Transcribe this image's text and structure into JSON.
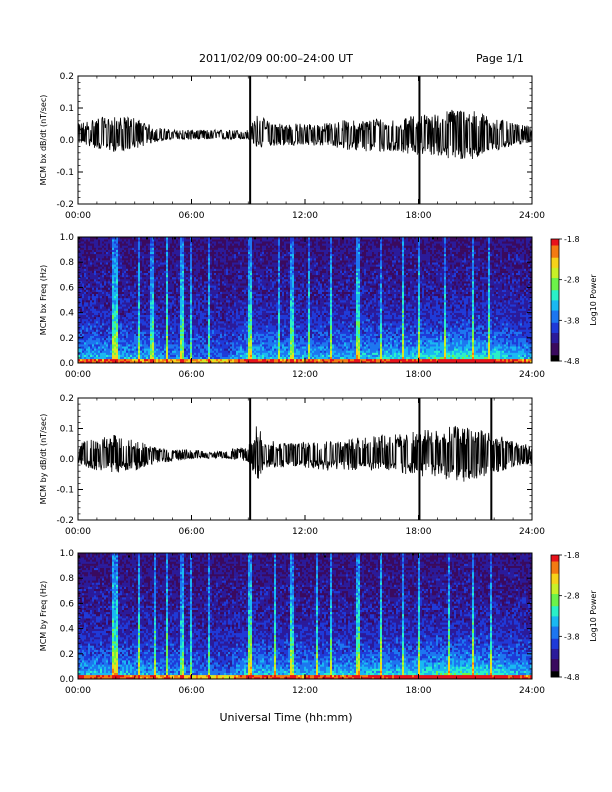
{
  "header": {
    "date_range": "2011/02/09   00:00–24:00 UT",
    "page": "Page 1/1"
  },
  "footer": {
    "xlabel": "Universal Time (hh:mm)"
  },
  "colors": {
    "background": "#ffffff",
    "line": "#000000",
    "colormap": [
      "#000000",
      "#3a0a5e",
      "#2b1b9a",
      "#1f3ad8",
      "#1d76f0",
      "#19b8f2",
      "#2af0c8",
      "#6cf24a",
      "#c8f028",
      "#f6d21a",
      "#f47a12",
      "#e8121a"
    ]
  },
  "chart_data": [
    {
      "type": "line",
      "id": "bx-dbdt",
      "ylabel": "MCM bx dB/dt (nT/sec)",
      "xlim": [
        0,
        24
      ],
      "ylim": [
        -0.2,
        0.2
      ],
      "xticks": [
        0,
        6,
        12,
        18,
        24
      ],
      "xticklabels": [
        "00:00",
        "06:00",
        "12:00",
        "18:00",
        "24:00"
      ],
      "yticks": [
        -0.2,
        -0.1,
        0.0,
        0.1,
        0.2
      ],
      "yticklabels": [
        "-0.2",
        "-0.1",
        "0.0",
        "0.1",
        "0.2"
      ],
      "envelope": {
        "x": [
          0,
          1,
          2,
          3,
          4,
          5,
          6,
          7,
          8,
          9,
          9.5,
          10,
          11,
          12,
          13,
          14,
          15,
          16,
          17,
          18,
          19,
          20,
          21,
          22,
          23,
          24
        ],
        "min": [
          -0.02,
          -0.04,
          -0.05,
          -0.04,
          -0.02,
          -0.01,
          -0.01,
          -0.01,
          -0.01,
          -0.01,
          -0.04,
          -0.03,
          -0.03,
          -0.03,
          -0.03,
          -0.04,
          -0.05,
          -0.05,
          -0.05,
          -0.06,
          -0.06,
          -0.08,
          -0.07,
          -0.05,
          -0.03,
          -0.02
        ],
        "max": [
          0.04,
          0.06,
          0.06,
          0.06,
          0.03,
          0.02,
          0.02,
          0.02,
          0.02,
          0.02,
          0.07,
          0.05,
          0.04,
          0.04,
          0.04,
          0.05,
          0.05,
          0.06,
          0.05,
          0.07,
          0.07,
          0.09,
          0.08,
          0.06,
          0.04,
          0.03
        ]
      },
      "spikes": [
        {
          "x": 9.1,
          "min": -0.2,
          "max": 0.2
        },
        {
          "x": 18.05,
          "min": -0.2,
          "max": 0.2
        }
      ]
    },
    {
      "type": "heatmap",
      "id": "bx-freq",
      "ylabel": "MCM bx Freq (Hz)",
      "xlim": [
        0,
        24
      ],
      "ylim": [
        0.0,
        1.0
      ],
      "xticks": [
        0,
        6,
        12,
        18,
        24
      ],
      "xticklabels": [
        "00:00",
        "06:00",
        "12:00",
        "18:00",
        "24:00"
      ],
      "yticks": [
        0.0,
        0.2,
        0.4,
        0.6,
        0.8,
        1.0
      ],
      "yticklabels": [
        "0.0",
        "0.2",
        "0.4",
        "0.6",
        "0.8",
        "1.0"
      ],
      "colorbar": {
        "label": "Log10 Power",
        "range": [
          -4.8,
          -1.8
        ],
        "ticks": [
          -4.8,
          -3.8,
          -2.8,
          -1.8
        ],
        "ticklabels": [
          "-4.8",
          "-3.8",
          "-2.8",
          "-1.8"
        ]
      },
      "bright_columns": [
        1.85,
        2.0,
        3.2,
        3.9,
        4.7,
        5.5,
        6.0,
        6.95,
        9.1,
        10.6,
        11.3,
        12.2,
        13.4,
        14.8,
        16.0,
        17.2,
        18.05,
        19.4,
        20.9,
        21.7
      ],
      "activity_envelope": {
        "x": [
          0,
          2,
          4,
          6,
          8,
          9,
          10,
          12,
          14,
          16,
          18,
          20,
          22,
          24
        ],
        "level": [
          0.55,
          0.6,
          0.5,
          0.35,
          0.3,
          0.7,
          0.6,
          0.55,
          0.6,
          0.65,
          0.7,
          0.85,
          0.75,
          0.5
        ]
      }
    },
    {
      "type": "line",
      "id": "by-dbdt",
      "ylabel": "MCM by dB/dt (nT/sec)",
      "xlim": [
        0,
        24
      ],
      "ylim": [
        -0.2,
        0.2
      ],
      "xticks": [
        0,
        6,
        12,
        18,
        24
      ],
      "xticklabels": [
        "00:00",
        "06:00",
        "12:00",
        "18:00",
        "24:00"
      ],
      "yticks": [
        -0.2,
        -0.1,
        0.0,
        0.1,
        0.2
      ],
      "yticklabels": [
        "-0.2",
        "-0.1",
        "0.0",
        "0.1",
        "0.2"
      ],
      "envelope": {
        "x": [
          0,
          1,
          2,
          3,
          4,
          5,
          6,
          7,
          8,
          9,
          9.5,
          10,
          11,
          12,
          13,
          14,
          15,
          16,
          17,
          18,
          19,
          20,
          21,
          22,
          23,
          24
        ],
        "min": [
          -0.03,
          -0.05,
          -0.06,
          -0.05,
          -0.03,
          -0.02,
          -0.01,
          -0.01,
          -0.01,
          -0.02,
          -0.08,
          -0.04,
          -0.04,
          -0.04,
          -0.05,
          -0.05,
          -0.05,
          -0.05,
          -0.06,
          -0.07,
          -0.07,
          -0.09,
          -0.08,
          -0.06,
          -0.04,
          -0.03
        ],
        "max": [
          0.04,
          0.06,
          0.07,
          0.05,
          0.03,
          0.02,
          0.02,
          0.01,
          0.02,
          0.03,
          0.11,
          0.05,
          0.04,
          0.05,
          0.05,
          0.05,
          0.06,
          0.07,
          0.07,
          0.08,
          0.09,
          0.1,
          0.1,
          0.07,
          0.05,
          0.03
        ]
      },
      "spikes": [
        {
          "x": 9.1,
          "min": -0.2,
          "max": 0.2
        },
        {
          "x": 18.05,
          "min": -0.2,
          "max": 0.2
        },
        {
          "x": 21.85,
          "min": -0.2,
          "max": 0.2
        }
      ]
    },
    {
      "type": "heatmap",
      "id": "by-freq",
      "ylabel": "MCM by Freq (Hz)",
      "xlim": [
        0,
        24
      ],
      "ylim": [
        0.0,
        1.0
      ],
      "xticks": [
        0,
        6,
        12,
        18,
        24
      ],
      "xticklabels": [
        "00:00",
        "06:00",
        "12:00",
        "18:00",
        "24:00"
      ],
      "yticks": [
        0.0,
        0.2,
        0.4,
        0.6,
        0.8,
        1.0
      ],
      "yticklabels": [
        "0.0",
        "0.2",
        "0.4",
        "0.6",
        "0.8",
        "1.0"
      ],
      "colorbar": {
        "label": "Log10 Power",
        "range": [
          -4.8,
          -1.8
        ],
        "ticks": [
          -4.8,
          -3.8,
          -2.8,
          -1.8
        ],
        "ticklabels": [
          "-4.8",
          "-3.8",
          "-2.8",
          "-1.8"
        ]
      },
      "bright_columns": [
        1.85,
        2.0,
        3.2,
        4.1,
        4.7,
        5.5,
        6.0,
        6.95,
        9.1,
        10.4,
        11.3,
        12.6,
        13.4,
        14.8,
        16.0,
        17.2,
        18.05,
        19.6,
        20.9,
        21.85
      ],
      "activity_envelope": {
        "x": [
          0,
          2,
          4,
          6,
          8,
          9,
          10,
          12,
          14,
          16,
          18,
          20,
          22,
          24
        ],
        "level": [
          0.55,
          0.6,
          0.5,
          0.35,
          0.3,
          0.7,
          0.6,
          0.55,
          0.6,
          0.65,
          0.7,
          0.85,
          0.75,
          0.5
        ]
      }
    }
  ]
}
